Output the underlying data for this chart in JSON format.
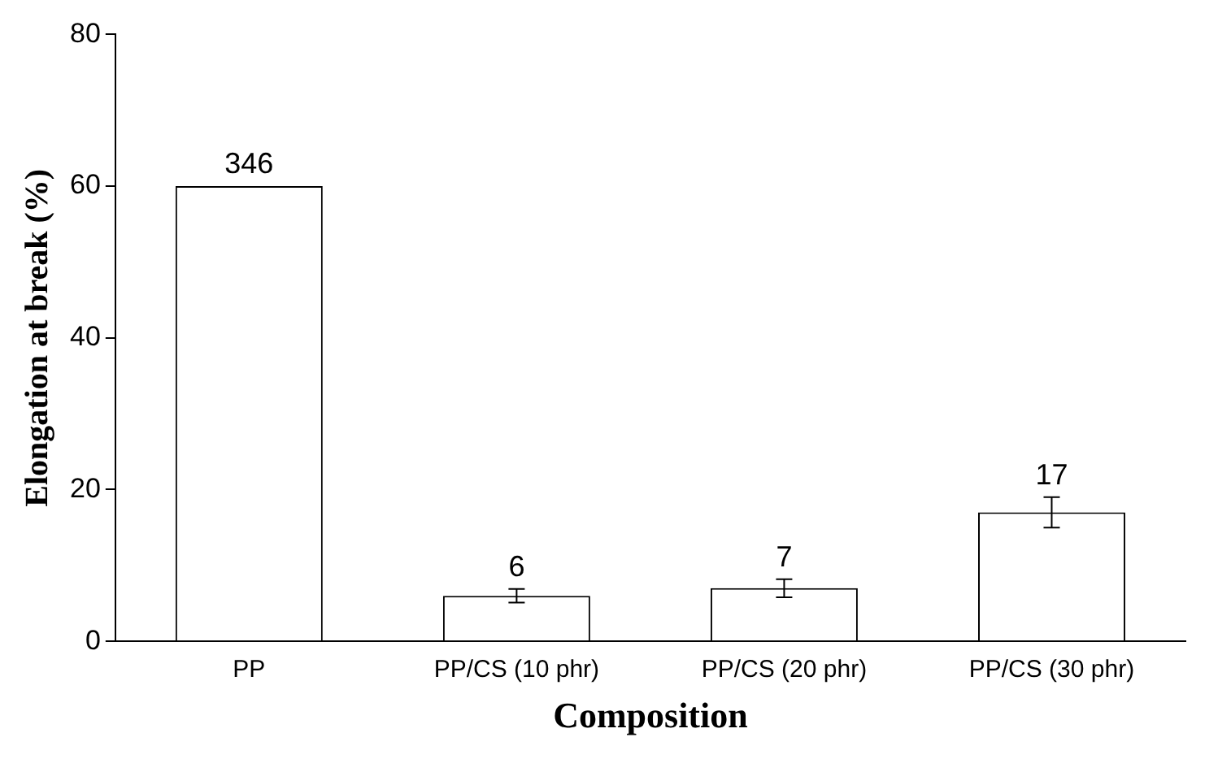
{
  "chart_data": {
    "type": "bar",
    "xlabel": "Composition",
    "ylabel": "Elongation at break (%)",
    "categories": [
      "PP",
      "PP/CS (10 phr)",
      "PP/CS (20 phr)",
      "PP/CS (30 phr)"
    ],
    "values": [
      60,
      6,
      7,
      17
    ],
    "value_labels": [
      null,
      "6",
      "7",
      "17"
    ],
    "annotations": [
      {
        "text": "346",
        "x": "PP",
        "y": 60
      }
    ],
    "errors": [
      null,
      0.9,
      1.2,
      2
    ],
    "color": "#ffffff",
    "ylim": [
      0,
      80
    ],
    "yticks": [
      0,
      20,
      40,
      60,
      80
    ],
    "grid": false,
    "legend": false
  }
}
